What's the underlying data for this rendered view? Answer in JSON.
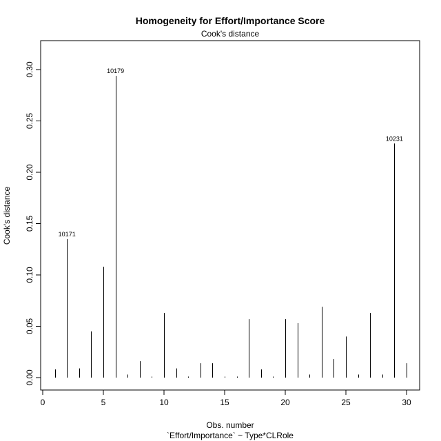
{
  "chart_data": {
    "type": "bar",
    "title": "Homogeneity for Effort/Importance Score",
    "subtitle": "Cook's distance",
    "xlabel": "Obs. number",
    "xlabel2": "`Effort/Importance` ~ Type*CLRole",
    "ylabel": "Cook's distance",
    "xlim": [
      0,
      30
    ],
    "ylim": [
      0,
      0.3
    ],
    "x_ticks": [
      0,
      5,
      10,
      15,
      20,
      25,
      30
    ],
    "x_tick_labels": [
      "0",
      "5",
      "10",
      "15",
      "20",
      "25",
      "30"
    ],
    "y_ticks": [
      0,
      0.05,
      0.1,
      0.15,
      0.2,
      0.25,
      0.3
    ],
    "y_tick_labels": [
      "0.00",
      "0.05",
      "0.10",
      "0.15",
      "0.20",
      "0.25",
      "0.30"
    ],
    "x": [
      1,
      2,
      3,
      4,
      5,
      6,
      7,
      8,
      9,
      10,
      11,
      12,
      13,
      14,
      15,
      16,
      17,
      18,
      19,
      20,
      21,
      22,
      23,
      24,
      25,
      26,
      27,
      28,
      29,
      30
    ],
    "values": [
      0.008,
      0.135,
      0.009,
      0.045,
      0.108,
      0.294,
      0.003,
      0.016,
      0.001,
      0.063,
      0.009,
      0.001,
      0.014,
      0.014,
      0.001,
      0.001,
      0.057,
      0.008,
      0.001,
      0.057,
      0.053,
      0.003,
      0.069,
      0.018,
      0.04,
      0.003,
      0.063,
      0.003,
      0.228,
      0.014
    ],
    "annotations": [
      {
        "x": 2,
        "y": 0.135,
        "text": "10171"
      },
      {
        "x": 6,
        "y": 0.294,
        "text": "10179"
      },
      {
        "x": 29,
        "y": 0.228,
        "text": "10231"
      }
    ],
    "grid": false,
    "legend": "none"
  }
}
